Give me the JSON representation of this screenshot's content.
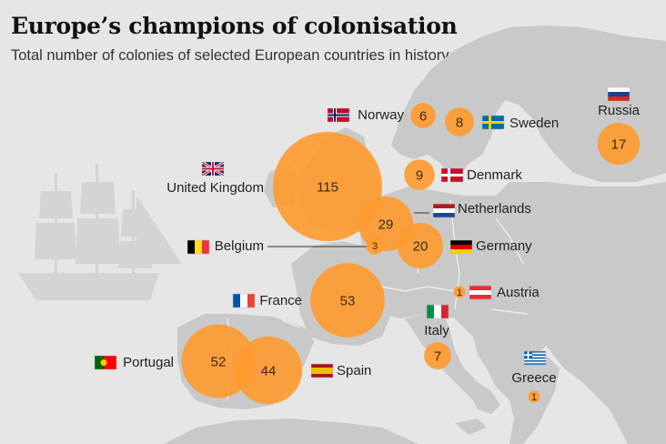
{
  "title": "Europe’s champions of colonisation",
  "subtitle": "Total number of colonies of selected European countries in history",
  "colors": {
    "bubble": "#ff9a2e",
    "bubble_dark": "#f07f10",
    "land": "#c9c9c9",
    "sea": "#e6e6e6",
    "border": "#f2f2f2"
  },
  "countries": [
    {
      "id": "russia",
      "name": "Russia",
      "colonies": 17,
      "flag": "russia"
    },
    {
      "id": "norway",
      "name": "Norway",
      "colonies": 6,
      "flag": "norway"
    },
    {
      "id": "sweden",
      "name": "Sweden",
      "colonies": 8,
      "flag": "sweden"
    },
    {
      "id": "denmark",
      "name": "Denmark",
      "colonies": 9,
      "flag": "denmark"
    },
    {
      "id": "uk",
      "name": "United Kingdom",
      "colonies": 115,
      "flag": "uk"
    },
    {
      "id": "netherlands",
      "name": "Netherlands",
      "colonies": 29,
      "flag": "netherlands"
    },
    {
      "id": "belgium",
      "name": "Belgium",
      "colonies": 3,
      "flag": "belgium"
    },
    {
      "id": "germany",
      "name": "Germany",
      "colonies": 20,
      "flag": "germany"
    },
    {
      "id": "france",
      "name": "France",
      "colonies": 53,
      "flag": "france"
    },
    {
      "id": "austria",
      "name": "Austria",
      "colonies": 1,
      "flag": "austria"
    },
    {
      "id": "italy",
      "name": "Italy",
      "colonies": 7,
      "flag": "italy"
    },
    {
      "id": "portugal",
      "name": "Portugal",
      "colonies": 52,
      "flag": "portugal"
    },
    {
      "id": "spain",
      "name": "Spain",
      "colonies": 44,
      "flag": "spain"
    },
    {
      "id": "greece",
      "name": "Greece",
      "colonies": 1,
      "flag": "greece"
    }
  ],
  "decoration": {
    "ship_icon": "sailing-ship-icon"
  }
}
